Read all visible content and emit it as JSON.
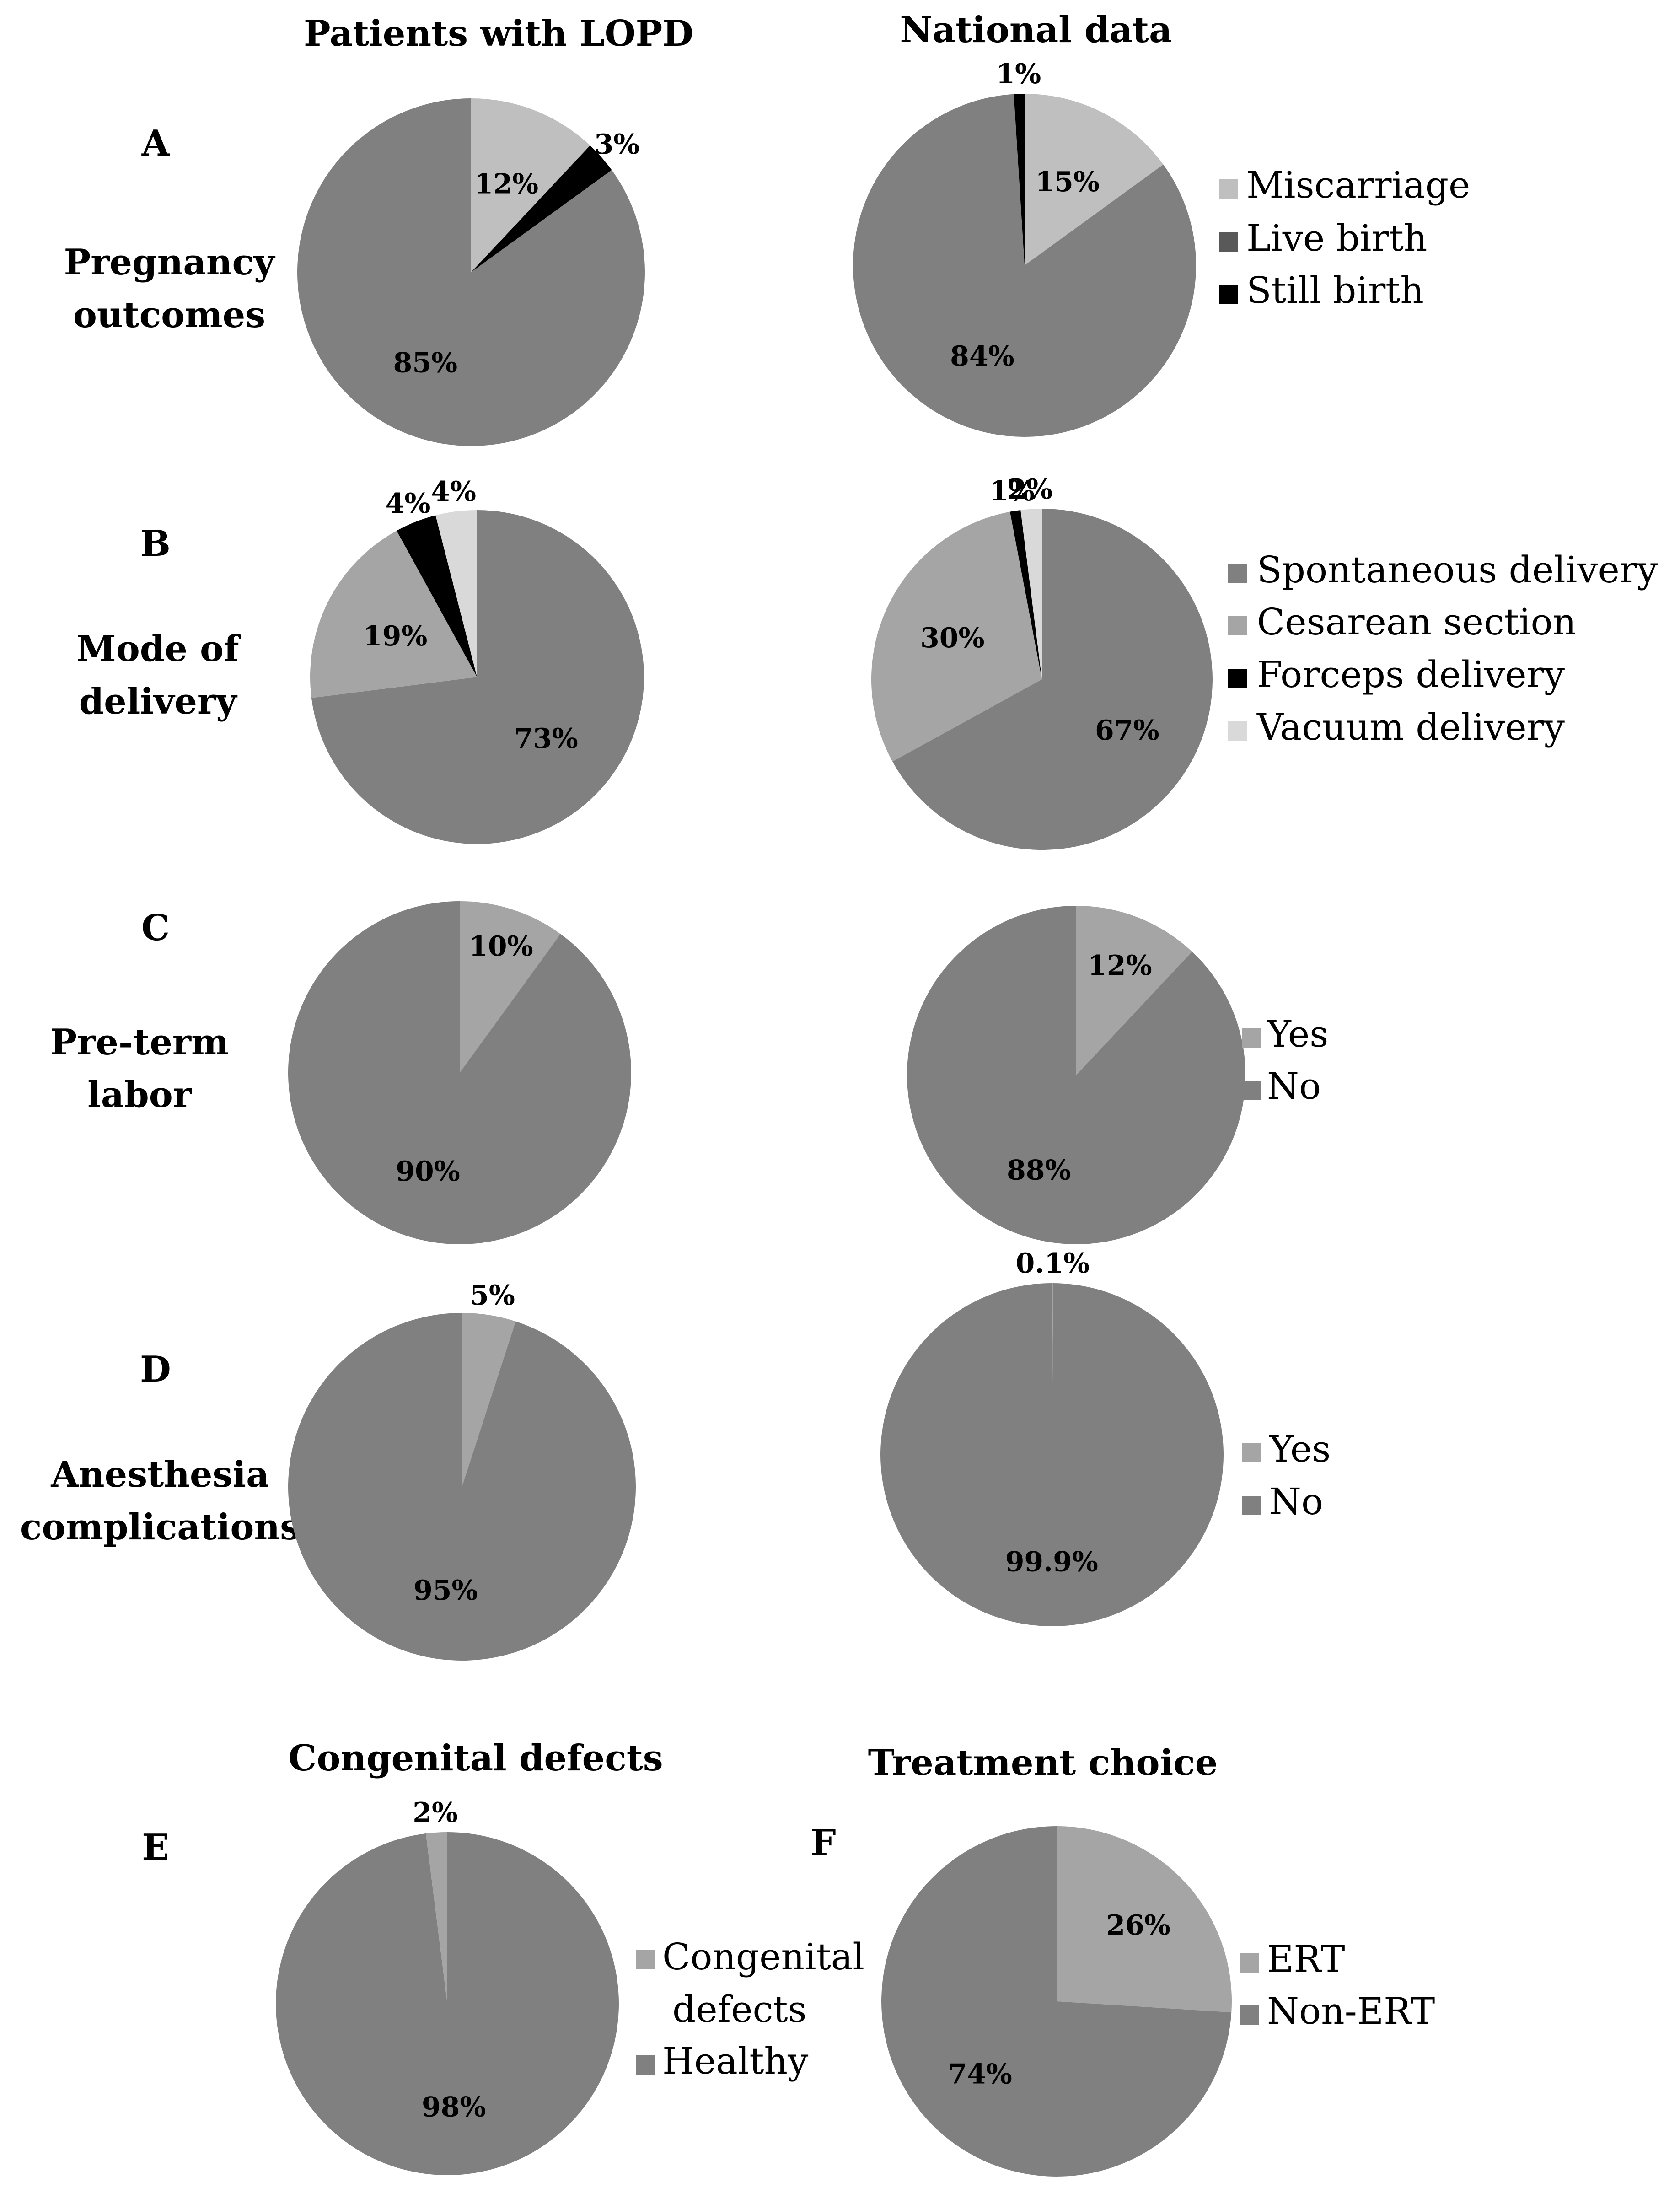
{
  "column_headers": {
    "left": "Patients with LOPD",
    "right": "National data"
  },
  "section_titles": {
    "e": "Congenital defects",
    "f": "Treatment choice"
  },
  "rows": [
    {
      "letter": "A",
      "label_lines": [
        "Pregnancy",
        "outcomes"
      ]
    },
    {
      "letter": "B",
      "label_lines": [
        "Mode of",
        "delivery"
      ]
    },
    {
      "letter": "C",
      "label_lines": [
        "Pre-term",
        "labor"
      ]
    },
    {
      "letter": "D",
      "label_lines": [
        "Anesthesia",
        "complications"
      ]
    },
    {
      "letter": "E",
      "label_lines": []
    },
    {
      "letter": "F",
      "label_lines": []
    }
  ],
  "colors": {
    "light_gray": "#bfbfbf",
    "mid_gray": "#a5a5a5",
    "dark_gray": "#808080",
    "very_light": "#d9d9d9",
    "black": "#000000"
  },
  "chart_data": [
    {
      "id": "A-left",
      "type": "pie",
      "panel": "A",
      "column": "Patients with LOPD",
      "slices": [
        {
          "name": "Miscarriage",
          "value": 12,
          "label": "12%",
          "color": "#bfbfbf"
        },
        {
          "name": "Live birth",
          "value": 85,
          "label": "85%",
          "color": "#808080"
        },
        {
          "name": "Still birth",
          "value": 3,
          "label": "3%",
          "color": "#000000"
        }
      ]
    },
    {
      "id": "A-right",
      "type": "pie",
      "panel": "A",
      "column": "National data",
      "slices": [
        {
          "name": "Miscarriage",
          "value": 15,
          "label": "15%",
          "color": "#bfbfbf"
        },
        {
          "name": "Live birth",
          "value": 84,
          "label": "84%",
          "color": "#808080"
        },
        {
          "name": "Still birth",
          "value": 1,
          "label": "1%",
          "color": "#000000"
        }
      ],
      "legend": [
        {
          "name": "Miscarriage",
          "color": "#bfbfbf"
        },
        {
          "name": "Live birth",
          "color": "#595959"
        },
        {
          "name": "Still birth",
          "color": "#000000"
        }
      ]
    },
    {
      "id": "B-left",
      "type": "pie",
      "panel": "B",
      "column": "Patients with LOPD",
      "slices": [
        {
          "name": "Spontaneous delivery",
          "value": 73,
          "label": "73%",
          "color": "#808080"
        },
        {
          "name": "Cesarean section",
          "value": 19,
          "label": "19%",
          "color": "#a5a5a5"
        },
        {
          "name": "Forceps delivery",
          "value": 4,
          "label": "4%",
          "color": "#000000"
        },
        {
          "name": "Vacuum delivery",
          "value": 4,
          "label": "4%",
          "color": "#d9d9d9"
        }
      ]
    },
    {
      "id": "B-right",
      "type": "pie",
      "panel": "B",
      "column": "National data",
      "slices": [
        {
          "name": "Spontaneous delivery",
          "value": 67,
          "label": "67%",
          "color": "#808080"
        },
        {
          "name": "Cesarean section",
          "value": 30,
          "label": "30%",
          "color": "#a5a5a5"
        },
        {
          "name": "Forceps delivery",
          "value": 1,
          "label": "1%",
          "color": "#000000"
        },
        {
          "name": "Vacuum delivery",
          "value": 2,
          "label": "2%",
          "color": "#d9d9d9"
        }
      ],
      "legend": [
        {
          "name": "Spontaneous delivery",
          "color": "#808080"
        },
        {
          "name": "Cesarean section",
          "color": "#a5a5a5"
        },
        {
          "name": "Forceps delivery",
          "color": "#000000"
        },
        {
          "name": "Vacuum delivery",
          "color": "#d9d9d9"
        }
      ]
    },
    {
      "id": "C-left",
      "type": "pie",
      "panel": "C",
      "column": "Patients with LOPD",
      "slices": [
        {
          "name": "Yes",
          "value": 10,
          "label": "10%",
          "color": "#a5a5a5"
        },
        {
          "name": "No",
          "value": 90,
          "label": "90%",
          "color": "#808080"
        }
      ]
    },
    {
      "id": "C-right",
      "type": "pie",
      "panel": "C",
      "column": "National data",
      "slices": [
        {
          "name": "Yes",
          "value": 12,
          "label": "12%",
          "color": "#a5a5a5"
        },
        {
          "name": "No",
          "value": 88,
          "label": "88%",
          "color": "#808080"
        }
      ],
      "legend": [
        {
          "name": "Yes",
          "color": "#a5a5a5"
        },
        {
          "name": "No",
          "color": "#808080"
        }
      ]
    },
    {
      "id": "D-left",
      "type": "pie",
      "panel": "D",
      "column": "Patients with LOPD",
      "slices": [
        {
          "name": "Yes",
          "value": 5,
          "label": "5%",
          "color": "#a5a5a5"
        },
        {
          "name": "No",
          "value": 95,
          "label": "95%",
          "color": "#808080"
        }
      ]
    },
    {
      "id": "D-right",
      "type": "pie",
      "panel": "D",
      "column": "National data",
      "slices": [
        {
          "name": "Yes",
          "value": 0.1,
          "label": "0.1%",
          "color": "#a5a5a5"
        },
        {
          "name": "No",
          "value": 99.9,
          "label": "99.9%",
          "color": "#808080"
        }
      ],
      "legend": [
        {
          "name": "Yes",
          "color": "#a5a5a5"
        },
        {
          "name": "No",
          "color": "#808080"
        }
      ]
    },
    {
      "id": "E",
      "type": "pie",
      "panel": "E",
      "title": "Congenital defects",
      "slices": [
        {
          "name": "Healthy",
          "value": 98,
          "label": "98%",
          "color": "#808080"
        },
        {
          "name": "Congenital defects",
          "value": 2,
          "label": "2%",
          "color": "#a5a5a5"
        }
      ],
      "legend": [
        {
          "name": "Congenital defects",
          "color": "#a5a5a5",
          "lines": [
            "Congenital",
            "defects"
          ]
        },
        {
          "name": "Healthy",
          "color": "#808080"
        }
      ]
    },
    {
      "id": "F",
      "type": "pie",
      "panel": "F",
      "title": "Treatment choice",
      "slices": [
        {
          "name": "ERT",
          "value": 26,
          "label": "26%",
          "color": "#a5a5a5"
        },
        {
          "name": "Non-ERT",
          "value": 74,
          "label": "74%",
          "color": "#808080"
        }
      ],
      "legend": [
        {
          "name": "ERT",
          "color": "#a5a5a5"
        },
        {
          "name": "Non-ERT",
          "color": "#808080"
        }
      ]
    }
  ]
}
